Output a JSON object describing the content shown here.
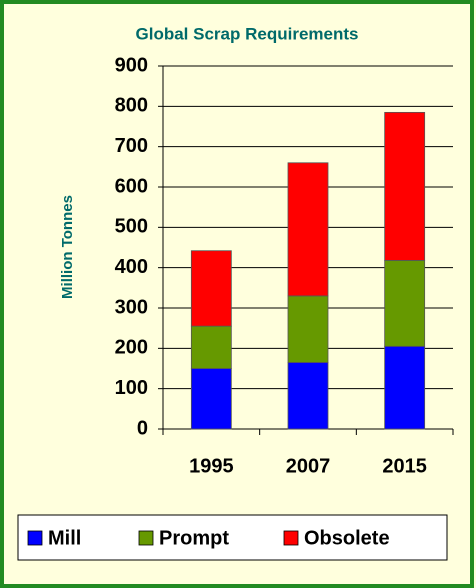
{
  "chart_data": {
    "type": "stacked_bar",
    "title": "Global Scrap Requirements",
    "y_label": "Million Tonnes",
    "categories": [
      "1995",
      "2007",
      "2015"
    ],
    "series": [
      {
        "name": "Mill",
        "color": "#0000ff",
        "values": [
          150,
          165,
          205
        ]
      },
      {
        "name": "Prompt",
        "color": "#669900",
        "values": [
          105,
          165,
          213
        ]
      },
      {
        "name": "Obsolete",
        "color": "#ff0000",
        "values": [
          187,
          330,
          367
        ]
      }
    ],
    "ylim": [
      0,
      900
    ],
    "yticks": [
      0,
      100,
      200,
      300,
      400,
      500,
      600,
      700,
      800,
      900
    ],
    "grid": true
  }
}
